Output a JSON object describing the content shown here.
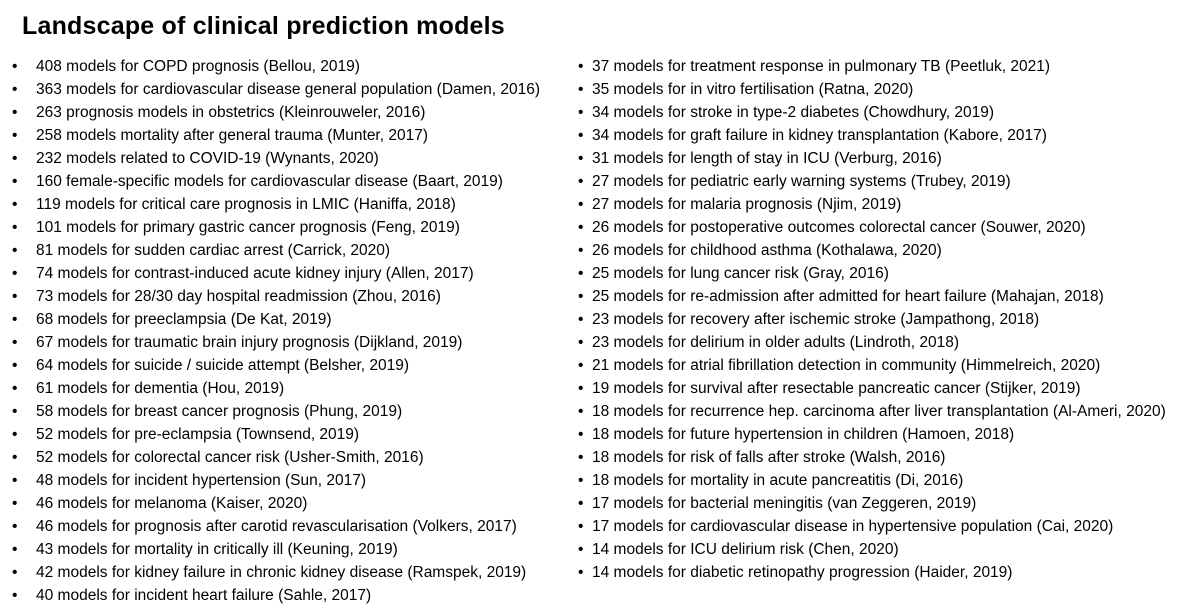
{
  "title": "Landscape of clinical prediction models",
  "text_color": "#000000",
  "background_color": "#ffffff",
  "columns": {
    "left": [
      "408 models for COPD prognosis (Bellou, 2019)",
      "363 models for cardiovascular disease general population (Damen, 2016)",
      "263 prognosis models in obstetrics (Kleinrouweler, 2016)",
      "258 models mortality after general trauma (Munter, 2017)",
      "232 models related to COVID-19 (Wynants, 2020)",
      "160 female-specific models for cardiovascular disease (Baart, 2019)",
      "119 models for critical care prognosis in LMIC (Haniffa, 2018)",
      "101 models for primary gastric cancer prognosis (Feng, 2019)",
      "81 models for sudden cardiac arrest (Carrick, 2020)",
      "74 models for contrast-induced acute kidney injury (Allen, 2017)",
      "73 models for 28/30 day hospital readmission (Zhou, 2016)",
      "68 models for preeclampsia (De Kat, 2019)",
      "67 models for traumatic brain injury prognosis (Dijkland, 2019)",
      "64 models for suicide / suicide attempt (Belsher, 2019)",
      "61 models for dementia (Hou, 2019)",
      "58 models for breast cancer prognosis (Phung, 2019)",
      "52 models for pre-eclampsia (Townsend, 2019)",
      "52 models for colorectal cancer risk (Usher-Smith, 2016)",
      "48 models for incident hypertension (Sun, 2017)",
      "46 models for melanoma (Kaiser, 2020)",
      "46 models for prognosis after carotid revascularisation (Volkers, 2017)",
      "43 models for mortality in critically ill (Keuning, 2019)",
      "42 models for kidney failure in chronic kidney disease (Ramspek, 2019)",
      "40 models for incident heart failure (Sahle, 2017)"
    ],
    "right": [
      "37 models for treatment response in pulmonary TB (Peetluk, 2021)",
      "35 models for in vitro fertilisation (Ratna, 2020)",
      "34 models for stroke in type-2 diabetes (Chowdhury, 2019)",
      "34 models for graft failure in kidney transplantation (Kabore, 2017)",
      "31 models for length of stay in ICU (Verburg, 2016)",
      "27 models for pediatric early warning systems (Trubey, 2019)",
      "27 models for malaria prognosis (Njim, 2019)",
      "26 models for postoperative outcomes colorectal cancer (Souwer, 2020)",
      "26 models for childhood asthma (Kothalawa, 2020)",
      "25 models for lung cancer risk (Gray, 2016)",
      "25 models for re-admission after admitted for heart failure (Mahajan, 2018)",
      "23 models for recovery after ischemic stroke (Jampathong, 2018)",
      "23 models for delirium in older adults (Lindroth, 2018)",
      "21 models for atrial fibrillation detection in community (Himmelreich, 2020)",
      "19 models for survival after resectable pancreatic cancer (Stijker, 2019)",
      "18 models for recurrence hep. carcinoma after liver transplantation (Al-Ameri, 2020)",
      "18 models for future hypertension in children (Hamoen, 2018)",
      "18 models for risk of falls after stroke (Walsh, 2016)",
      "18 models for mortality in acute pancreatitis (Di, 2016)",
      "17 models for bacterial meningitis (van Zeggeren, 2019)",
      "17 models for cardiovascular disease in hypertensive population (Cai, 2020)",
      "14 models for ICU delirium risk (Chen, 2020)",
      "14 models for diabetic retinopathy progression (Haider, 2019)"
    ]
  }
}
